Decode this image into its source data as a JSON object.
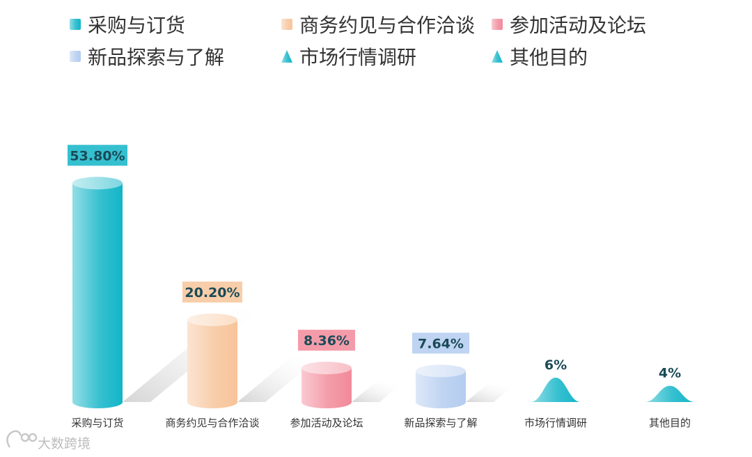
{
  "chart_data": {
    "type": "bar",
    "title": "",
    "xlabel": "",
    "ylabel": "",
    "categories": [
      "采购与订货",
      "商务约见与合作洽谈",
      "参加活动及论坛",
      "新品探索与了解",
      "市场行情调研",
      "其他目的"
    ],
    "values": [
      53.8,
      20.2,
      8.36,
      7.64,
      6,
      4
    ],
    "value_labels": [
      "53.80%",
      "20.20%",
      "8.36%",
      "7.64%",
      "6%",
      "4%"
    ],
    "shapes": [
      "cylinder",
      "cylinder",
      "cylinder",
      "cylinder",
      "peak",
      "peak"
    ],
    "colors": [
      "#12b5c8",
      "#f7c49a",
      "#f28a9a",
      "#b4ccf0",
      "#12b5c8",
      "#12b5c8"
    ],
    "legend_position": "top",
    "grid": false,
    "ylim": [
      0,
      60
    ]
  },
  "legend": {
    "items": [
      {
        "label": "采购与订货",
        "icon": "square-icon",
        "color": "#12b5c8"
      },
      {
        "label": "商务约见与合作洽谈",
        "icon": "square-icon",
        "color": "#f7c49a"
      },
      {
        "label": "参加活动及论坛",
        "icon": "square-icon",
        "color": "#f28a9a"
      },
      {
        "label": "新品探索与了解",
        "icon": "square-icon",
        "color": "#b4ccf0"
      },
      {
        "label": "市场行情调研",
        "icon": "triangle-icon",
        "color": "#12b5c8"
      },
      {
        "label": "其他目的",
        "icon": "triangle-icon",
        "color": "#12b5c8"
      }
    ]
  },
  "watermark": {
    "text": "大数跨境",
    "icon": "logo-icon"
  }
}
